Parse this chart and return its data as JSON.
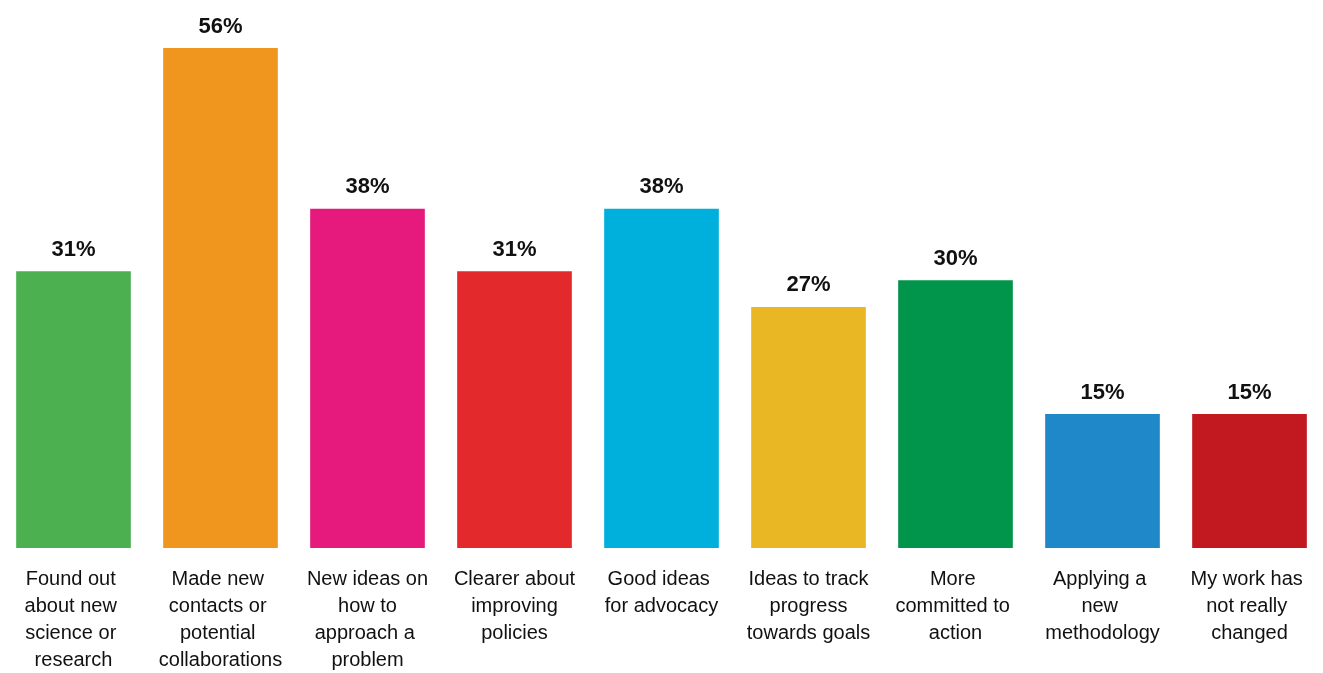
{
  "chart_data": {
    "type": "bar",
    "categories": [
      "Found out about new science or research",
      "Made new contacts or potential collaborations",
      "New ideas on how to approach a problem",
      "Clearer about improving policies",
      "Good ideas for advocacy",
      "Ideas to track progress towards goals",
      "More committed to action",
      "Applying a new methodology",
      "My work has not really changed"
    ],
    "values": [
      31,
      56,
      38,
      31,
      38,
      27,
      30,
      15,
      15
    ],
    "colors": [
      "#4cb050",
      "#f0961e",
      "#e6197d",
      "#e3292b",
      "#00b0dc",
      "#e9b724",
      "#00954a",
      "#1e88c8",
      "#c1191f"
    ],
    "value_labels": [
      "31%",
      "56%",
      "38%",
      "31%",
      "38%",
      "27%",
      "30%",
      "15%",
      "15%"
    ]
  }
}
